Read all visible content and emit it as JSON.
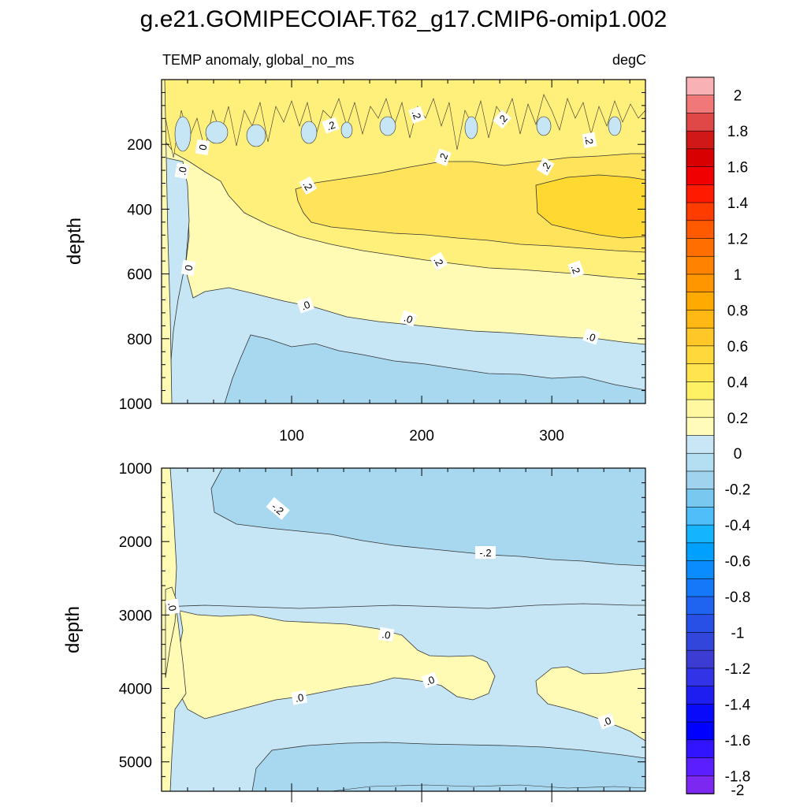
{
  "title": "g.e21.GOMIPECOIAF.T62_g17.CMIP6-omip1.002",
  "subtitle_left": "TEMP anomaly, global_no_ms",
  "subtitle_right": "degC",
  "chart_data": [
    {
      "type": "heatmap",
      "panel": "upper",
      "ylabel": "depth",
      "xlabel": "",
      "xlim": [
        0,
        372
      ],
      "ylim": [
        1000,
        0
      ],
      "xticks": [
        "100",
        "200",
        "300"
      ],
      "yticks": [
        "200",
        "400",
        "600",
        "800",
        "1000"
      ],
      "regions": [
        {
          "level": -0.1,
          "desc": "near-surface ocean 0-100m, noisy"
        },
        {
          "level": 0.1,
          "desc": "upper band 100-300m"
        },
        {
          "level": 0.2,
          "desc": "300-550m"
        },
        {
          "level": 0.3,
          "desc": "core 350-500m, later years"
        },
        {
          "level": 0.1,
          "desc": "550-750m"
        },
        {
          "level": -0.1,
          "desc": "750-1000m"
        },
        {
          "level": -0.2,
          "desc": "deep patch 800-1000m"
        }
      ],
      "contour_labels": [
        {
          "text": ".2"
        },
        {
          "text": ".2"
        },
        {
          "text": ".2"
        },
        {
          "text": ".2"
        },
        {
          "text": ".2"
        },
        {
          "text": ".2"
        },
        {
          "text": ".2"
        },
        {
          "text": "0"
        },
        {
          "text": ".0"
        },
        {
          "text": "0"
        },
        {
          "text": ".2"
        },
        {
          "text": ".2"
        },
        {
          "text": ".0"
        },
        {
          "text": ".0"
        },
        {
          "text": ".0"
        }
      ]
    },
    {
      "type": "heatmap",
      "panel": "lower",
      "ylabel": "depth",
      "xlabel": "",
      "xlim": [
        0,
        372
      ],
      "ylim": [
        5400,
        1000
      ],
      "xticks": [],
      "yticks": [
        "1000",
        "2000",
        "3000",
        "4000",
        "5000"
      ],
      "regions": [
        {
          "level": -0.1,
          "desc": "background"
        },
        {
          "level": -0.2,
          "desc": "1000-2000m band"
        },
        {
          "level": 0.1,
          "desc": "warm band 3000-4200m"
        },
        {
          "level": 0.1,
          "desc": "warm patch 3800-4600m, late years"
        },
        {
          "level": -0.2,
          "desc": "bottom 4800-5400m"
        }
      ],
      "contour_labels": [
        {
          "text": "-.2"
        },
        {
          "text": "-.2"
        },
        {
          "text": ".0"
        },
        {
          "text": ".0"
        },
        {
          "text": ".0"
        },
        {
          "text": ".0"
        },
        {
          "text": ".0"
        }
      ]
    }
  ],
  "colorbar": {
    "labels": [
      "2",
      "1.8",
      "1.6",
      "1.4",
      "1.2",
      "1",
      "0.8",
      "0.6",
      "0.4",
      "0.2",
      "0",
      "-0.2",
      "-0.4",
      "-0.6",
      "-0.8",
      "-1",
      "-1.2",
      "-1.4",
      "-1.6",
      "-1.8",
      "-2"
    ],
    "colors": [
      "#f8b2b6",
      "#f07878",
      "#e04848",
      "#d01818",
      "#d80000",
      "#f00000",
      "#ff1a00",
      "#ff3c00",
      "#ff5a00",
      "#ff6e00",
      "#ff8200",
      "#ff9600",
      "#ffaa00",
      "#ffb814",
      "#ffc828",
      "#ffd83c",
      "#ffe450",
      "#fff064",
      "#fff8a0",
      "#fffbba",
      "#c8e6f5",
      "#b4def2",
      "#a0d4ee",
      "#78c8f0",
      "#50bef8",
      "#14b4ff",
      "#00a0ff",
      "#0a8cff",
      "#1478f8",
      "#1e64f0",
      "#2850e6",
      "#3246dc",
      "#3c3cd2",
      "#3232e6",
      "#1e1ef0",
      "#0a0afa",
      "#0000ff",
      "#3214ff",
      "#5a1eff",
      "#7d28f0"
    ]
  },
  "level_colors": {
    "n02": "#a8d8f0",
    "n01": "#c6e6f6",
    "p01": "#fffbb4",
    "p02": "#fff07c",
    "p03": "#ffe35a",
    "p04": "#ffd832"
  }
}
